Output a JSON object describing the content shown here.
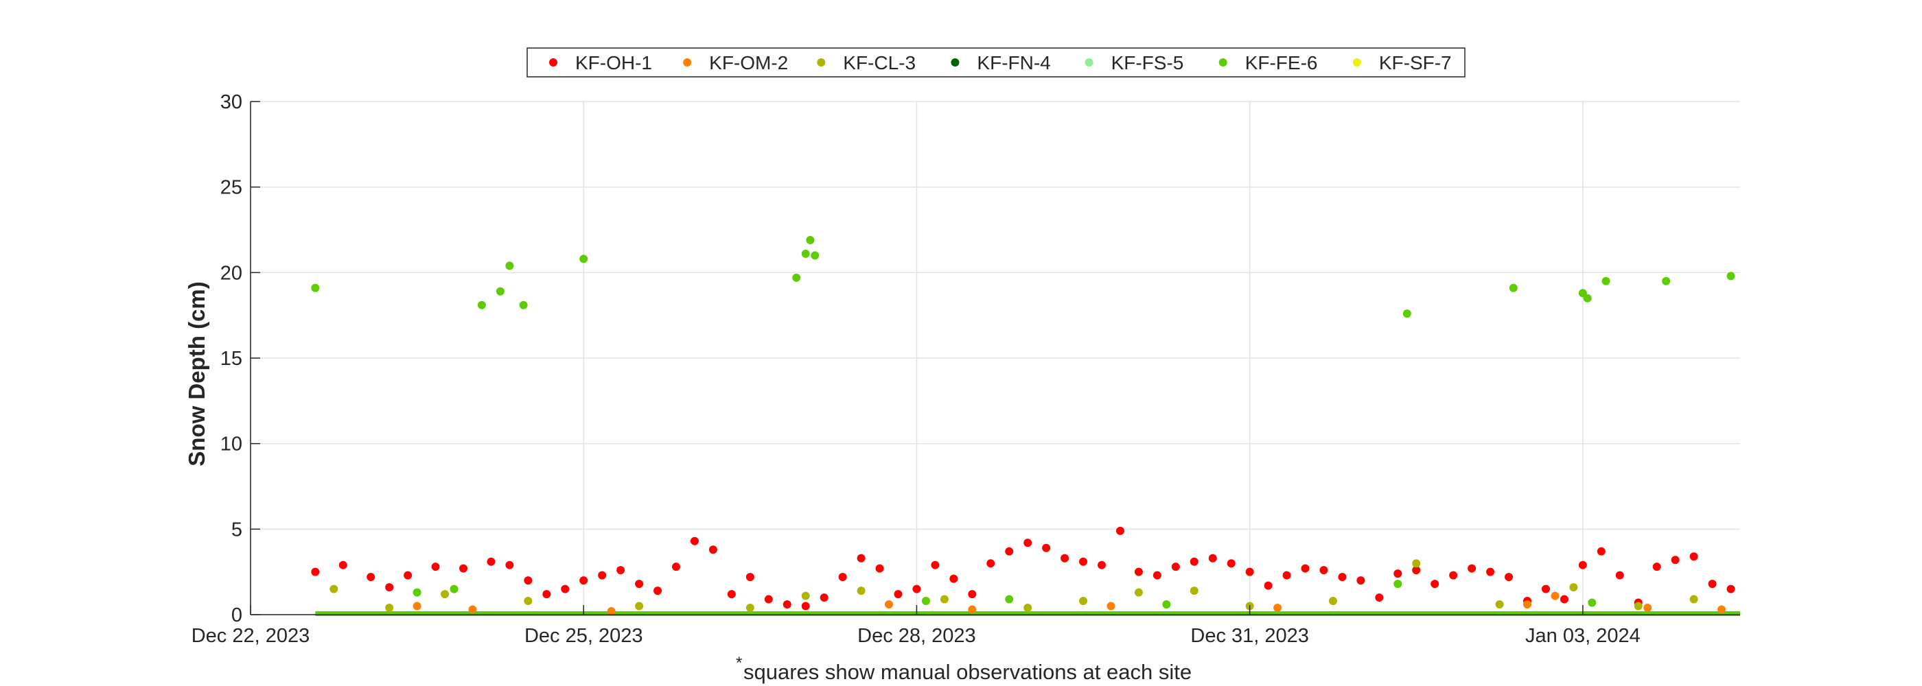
{
  "chart_data": {
    "type": "scatter",
    "title": "",
    "xlabel": "",
    "ylabel": "Snow Depth (cm)",
    "footnote_mark": "*",
    "footnote": "squares show manual observations at each site",
    "xlim": [
      "2023-12-22",
      "2024-01-04T10:00"
    ],
    "ylim": [
      0,
      30
    ],
    "yticks": [
      0,
      5,
      10,
      15,
      20,
      25,
      30
    ],
    "xticks": [
      {
        "date": "2023-12-22",
        "label": "Dec 22, 2023"
      },
      {
        "date": "2023-12-25",
        "label": "Dec 25, 2023"
      },
      {
        "date": "2023-12-28",
        "label": "Dec 28, 2023"
      },
      {
        "date": "2023-12-31",
        "label": "Dec 31, 2023"
      },
      {
        "date": "2024-01-03",
        "label": "Jan 03, 2024"
      }
    ],
    "grid": true,
    "legend_position": "top-center",
    "series": [
      {
        "name": "KF-OH-1",
        "color": "#ff0000",
        "points": [
          [
            "2023-12-22T14:00",
            2.5
          ],
          [
            "2023-12-22T20:00",
            2.9
          ],
          [
            "2023-12-23T02:00",
            2.2
          ],
          [
            "2023-12-23T06:00",
            1.6
          ],
          [
            "2023-12-23T10:00",
            2.3
          ],
          [
            "2023-12-23T16:00",
            2.8
          ],
          [
            "2023-12-23T22:00",
            2.7
          ],
          [
            "2023-12-24T04:00",
            3.1
          ],
          [
            "2023-12-24T08:00",
            2.9
          ],
          [
            "2023-12-24T12:00",
            2.0
          ],
          [
            "2023-12-24T16:00",
            1.2
          ],
          [
            "2023-12-24T20:00",
            1.5
          ],
          [
            "2023-12-25T00:00",
            2.0
          ],
          [
            "2023-12-25T04:00",
            2.3
          ],
          [
            "2023-12-25T08:00",
            2.6
          ],
          [
            "2023-12-25T12:00",
            1.8
          ],
          [
            "2023-12-25T16:00",
            1.4
          ],
          [
            "2023-12-25T20:00",
            2.8
          ],
          [
            "2023-12-26T00:00",
            4.3
          ],
          [
            "2023-12-26T04:00",
            3.8
          ],
          [
            "2023-12-26T08:00",
            1.2
          ],
          [
            "2023-12-26T12:00",
            2.2
          ],
          [
            "2023-12-26T16:00",
            0.9
          ],
          [
            "2023-12-26T20:00",
            0.6
          ],
          [
            "2023-12-27T00:00",
            0.5
          ],
          [
            "2023-12-27T04:00",
            1.0
          ],
          [
            "2023-12-27T08:00",
            2.2
          ],
          [
            "2023-12-27T12:00",
            3.3
          ],
          [
            "2023-12-27T16:00",
            2.7
          ],
          [
            "2023-12-27T20:00",
            1.2
          ],
          [
            "2023-12-28T00:00",
            1.5
          ],
          [
            "2023-12-28T04:00",
            2.9
          ],
          [
            "2023-12-28T08:00",
            2.1
          ],
          [
            "2023-12-28T12:00",
            1.2
          ],
          [
            "2023-12-28T16:00",
            3.0
          ],
          [
            "2023-12-28T20:00",
            3.7
          ],
          [
            "2023-12-29T00:00",
            4.2
          ],
          [
            "2023-12-29T04:00",
            3.9
          ],
          [
            "2023-12-29T08:00",
            3.3
          ],
          [
            "2023-12-29T12:00",
            3.1
          ],
          [
            "2023-12-29T16:00",
            2.9
          ],
          [
            "2023-12-29T20:00",
            4.9
          ],
          [
            "2023-12-30T00:00",
            2.5
          ],
          [
            "2023-12-30T04:00",
            2.3
          ],
          [
            "2023-12-30T08:00",
            2.8
          ],
          [
            "2023-12-30T12:00",
            3.1
          ],
          [
            "2023-12-30T16:00",
            3.3
          ],
          [
            "2023-12-30T20:00",
            3.0
          ],
          [
            "2023-12-31T00:00",
            2.5
          ],
          [
            "2023-12-31T04:00",
            1.7
          ],
          [
            "2023-12-31T08:00",
            2.3
          ],
          [
            "2023-12-31T12:00",
            2.7
          ],
          [
            "2023-12-31T16:00",
            2.6
          ],
          [
            "2023-12-31T20:00",
            2.2
          ],
          [
            "2024-01-01T00:00",
            2.0
          ],
          [
            "2024-01-01T04:00",
            1.0
          ],
          [
            "2024-01-01T08:00",
            2.4
          ],
          [
            "2024-01-01T12:00",
            2.6
          ],
          [
            "2024-01-01T16:00",
            1.8
          ],
          [
            "2024-01-01T20:00",
            2.3
          ],
          [
            "2024-01-02T00:00",
            2.7
          ],
          [
            "2024-01-02T04:00",
            2.5
          ],
          [
            "2024-01-02T08:00",
            2.2
          ],
          [
            "2024-01-02T12:00",
            0.8
          ],
          [
            "2024-01-02T16:00",
            1.5
          ],
          [
            "2024-01-02T20:00",
            0.9
          ],
          [
            "2024-01-03T00:00",
            2.9
          ],
          [
            "2024-01-03T04:00",
            3.7
          ],
          [
            "2024-01-03T08:00",
            2.3
          ],
          [
            "2024-01-03T12:00",
            0.7
          ],
          [
            "2024-01-03T16:00",
            2.8
          ],
          [
            "2024-01-03T20:00",
            3.2
          ],
          [
            "2024-01-04T00:00",
            3.4
          ],
          [
            "2024-01-04T04:00",
            1.8
          ],
          [
            "2024-01-04T08:00",
            1.5
          ]
        ]
      },
      {
        "name": "KF-OM-2",
        "color": "#ff8000",
        "points": [
          [
            "2023-12-23T12:00",
            0.5
          ],
          [
            "2023-12-24T00:00",
            0.3
          ],
          [
            "2023-12-25T06:00",
            0.2
          ],
          [
            "2023-12-27T18:00",
            0.6
          ],
          [
            "2023-12-28T12:00",
            0.3
          ],
          [
            "2023-12-29T18:00",
            0.5
          ],
          [
            "2023-12-31T06:00",
            0.4
          ],
          [
            "2024-01-02T12:00",
            0.6
          ],
          [
            "2024-01-02T18:00",
            1.1
          ],
          [
            "2024-01-03T14:00",
            0.4
          ],
          [
            "2024-01-04T06:00",
            0.3
          ]
        ]
      },
      {
        "name": "KF-CL-3",
        "color": "#afb400",
        "points": [
          [
            "2023-12-22T18:00",
            1.5
          ],
          [
            "2023-12-23T06:00",
            0.4
          ],
          [
            "2023-12-23T18:00",
            1.2
          ],
          [
            "2023-12-24T12:00",
            0.8
          ],
          [
            "2023-12-25T12:00",
            0.5
          ],
          [
            "2023-12-26T12:00",
            0.4
          ],
          [
            "2023-12-27T00:00",
            1.1
          ],
          [
            "2023-12-27T12:00",
            1.4
          ],
          [
            "2023-12-28T06:00",
            0.9
          ],
          [
            "2023-12-29T00:00",
            0.4
          ],
          [
            "2023-12-29T12:00",
            0.8
          ],
          [
            "2023-12-30T00:00",
            1.3
          ],
          [
            "2023-12-30T12:00",
            1.4
          ],
          [
            "2023-12-31T00:00",
            0.5
          ],
          [
            "2023-12-31T18:00",
            0.8
          ],
          [
            "2024-01-01T12:00",
            3.0
          ],
          [
            "2024-01-02T06:00",
            0.6
          ],
          [
            "2024-01-02T22:00",
            1.6
          ],
          [
            "2024-01-03T12:00",
            0.5
          ],
          [
            "2024-01-04T00:00",
            0.9
          ]
        ]
      },
      {
        "name": "KF-FN-4",
        "color": "#006400",
        "points": []
      },
      {
        "name": "KF-FS-5",
        "color": "#90ee90",
        "points": []
      },
      {
        "name": "KF-FE-6",
        "color": "#5ccd00",
        "points": [
          [
            "2023-12-22T14:00",
            19.1
          ],
          [
            "2023-12-24T02:00",
            18.1
          ],
          [
            "2023-12-24T06:00",
            18.9
          ],
          [
            "2023-12-24T08:00",
            20.4
          ],
          [
            "2023-12-24T11:00",
            18.1
          ],
          [
            "2023-12-25T00:00",
            20.8
          ],
          [
            "2023-12-26T22:00",
            19.7
          ],
          [
            "2023-12-27T00:00",
            21.1
          ],
          [
            "2023-12-27T01:00",
            21.9
          ],
          [
            "2023-12-27T02:00",
            21.0
          ],
          [
            "2024-01-01T10:00",
            17.6
          ],
          [
            "2024-01-02T09:00",
            19.1
          ],
          [
            "2024-01-03T00:00",
            18.8
          ],
          [
            "2024-01-03T01:00",
            18.5
          ],
          [
            "2024-01-03T05:00",
            19.5
          ],
          [
            "2024-01-03T18:00",
            19.5
          ],
          [
            "2024-01-04T08:00",
            19.8
          ],
          [
            "2023-12-23T12:00",
            1.3
          ],
          [
            "2023-12-23T20:00",
            1.5
          ],
          [
            "2023-12-28T02:00",
            0.8
          ],
          [
            "2023-12-28T20:00",
            0.9
          ],
          [
            "2023-12-30T06:00",
            0.6
          ],
          [
            "2024-01-01T08:00",
            1.8
          ],
          [
            "2024-01-03T02:00",
            0.7
          ]
        ]
      },
      {
        "name": "KF-SF-7",
        "color": "#f0f000",
        "points": []
      }
    ]
  }
}
